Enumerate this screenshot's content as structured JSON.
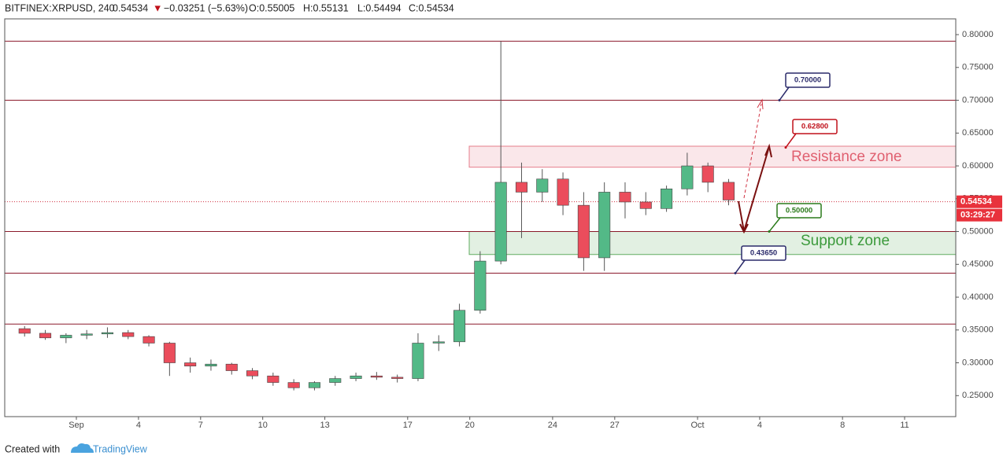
{
  "chart_data": {
    "type": "candlestick",
    "symbol": "BITFINEX:XRPUSD, 240",
    "last_price": 0.54534,
    "change_arrow": "▼",
    "change": "−0.03251 (−5.63%)",
    "ohlc": [
      "O:0.55005",
      "H:0.55131",
      "L:0.54494",
      "C:0.54534"
    ],
    "countdown": "03:29:27",
    "footer": "Created with",
    "brand": "TradingView",
    "xlim": [
      -2.46,
      43.47
    ],
    "xticks": [
      {
        "value": 1,
        "label": "Sep"
      },
      4,
      7,
      10,
      13,
      17,
      20,
      24,
      27,
      {
        "value": 31,
        "label": "Oct"
      },
      {
        "value": 34,
        "label": "4"
      },
      {
        "value": 38,
        "label": "8"
      },
      {
        "value": 41,
        "label": "11"
      }
    ],
    "ylim": [
      0.218,
      0.824
    ],
    "yticks": [
      {
        "value": 0.25,
        "label": "0.25000"
      },
      {
        "value": 0.3,
        "label": "0.30000"
      },
      {
        "value": 0.35,
        "label": "0.35000"
      },
      {
        "value": 0.4,
        "label": "0.40000"
      },
      {
        "value": 0.45,
        "label": "0.45000"
      },
      {
        "value": 0.5,
        "label": "0.50000"
      },
      {
        "value": 0.55,
        "label": "0.55000"
      },
      {
        "value": 0.6,
        "label": "0.60000"
      },
      {
        "value": 0.65,
        "label": "0.65000"
      },
      {
        "value": 0.7,
        "label": "0.70000"
      },
      {
        "value": 0.75,
        "label": "0.75000"
      },
      {
        "value": 0.8,
        "label": "0.80000"
      }
    ],
    "grid": true,
    "up_color": "#53b987",
    "down_color": "#eb4d5c",
    "level_color": "#8b1a2b",
    "candles": [
      {
        "x": -1.5,
        "open": 0.352,
        "high": 0.356,
        "low": 0.34,
        "close": 0.345
      },
      {
        "x": -0.5,
        "open": 0.345,
        "high": 0.35,
        "low": 0.335,
        "close": 0.338
      },
      {
        "x": 0.5,
        "open": 0.338,
        "high": 0.345,
        "low": 0.33,
        "close": 0.342
      },
      {
        "x": 1.5,
        "open": 0.342,
        "high": 0.35,
        "low": 0.336,
        "close": 0.344
      },
      {
        "x": 2.5,
        "open": 0.344,
        "high": 0.354,
        "low": 0.338,
        "close": 0.346
      },
      {
        "x": 3.5,
        "open": 0.346,
        "high": 0.35,
        "low": 0.336,
        "close": 0.34
      },
      {
        "x": 4.5,
        "open": 0.34,
        "high": 0.342,
        "low": 0.325,
        "close": 0.33
      },
      {
        "x": 5.5,
        "open": 0.33,
        "high": 0.332,
        "low": 0.28,
        "close": 0.3
      },
      {
        "x": 6.5,
        "open": 0.3,
        "high": 0.308,
        "low": 0.285,
        "close": 0.295
      },
      {
        "x": 7.5,
        "open": 0.295,
        "high": 0.305,
        "low": 0.288,
        "close": 0.298
      },
      {
        "x": 8.5,
        "open": 0.298,
        "high": 0.3,
        "low": 0.282,
        "close": 0.288
      },
      {
        "x": 9.5,
        "open": 0.288,
        "high": 0.292,
        "low": 0.275,
        "close": 0.28
      },
      {
        "x": 10.5,
        "open": 0.28,
        "high": 0.285,
        "low": 0.265,
        "close": 0.27
      },
      {
        "x": 11.5,
        "open": 0.27,
        "high": 0.275,
        "low": 0.258,
        "close": 0.262
      },
      {
        "x": 12.5,
        "open": 0.262,
        "high": 0.272,
        "low": 0.258,
        "close": 0.27
      },
      {
        "x": 13.5,
        "open": 0.27,
        "high": 0.28,
        "low": 0.265,
        "close": 0.276
      },
      {
        "x": 14.5,
        "open": 0.276,
        "high": 0.285,
        "low": 0.272,
        "close": 0.28
      },
      {
        "x": 15.5,
        "open": 0.28,
        "high": 0.286,
        "low": 0.274,
        "close": 0.278
      },
      {
        "x": 16.5,
        "open": 0.278,
        "high": 0.282,
        "low": 0.27,
        "close": 0.276
      },
      {
        "x": 17.5,
        "open": 0.276,
        "high": 0.345,
        "low": 0.272,
        "close": 0.33
      },
      {
        "x": 18.5,
        "open": 0.33,
        "high": 0.342,
        "low": 0.318,
        "close": 0.332
      },
      {
        "x": 19.5,
        "open": 0.332,
        "high": 0.39,
        "low": 0.325,
        "close": 0.38
      },
      {
        "x": 20.5,
        "open": 0.38,
        "high": 0.47,
        "low": 0.375,
        "close": 0.455
      },
      {
        "x": 21.5,
        "open": 0.455,
        "high": 0.79,
        "low": 0.45,
        "close": 0.575
      },
      {
        "x": 22.5,
        "open": 0.575,
        "high": 0.605,
        "low": 0.49,
        "close": 0.56
      },
      {
        "x": 23.5,
        "open": 0.56,
        "high": 0.595,
        "low": 0.545,
        "close": 0.58
      },
      {
        "x": 24.5,
        "open": 0.58,
        "high": 0.59,
        "low": 0.525,
        "close": 0.54
      },
      {
        "x": 25.5,
        "open": 0.54,
        "high": 0.56,
        "low": 0.44,
        "close": 0.46
      },
      {
        "x": 26.5,
        "open": 0.46,
        "high": 0.575,
        "low": 0.44,
        "close": 0.56
      },
      {
        "x": 27.5,
        "open": 0.56,
        "high": 0.575,
        "low": 0.52,
        "close": 0.545
      },
      {
        "x": 28.5,
        "open": 0.545,
        "high": 0.56,
        "low": 0.525,
        "close": 0.535
      },
      {
        "x": 29.5,
        "open": 0.535,
        "high": 0.57,
        "low": 0.53,
        "close": 0.565
      },
      {
        "x": 30.5,
        "open": 0.565,
        "high": 0.62,
        "low": 0.555,
        "close": 0.6
      },
      {
        "x": 31.5,
        "open": 0.6,
        "high": 0.605,
        "low": 0.56,
        "close": 0.575
      },
      {
        "x": 32.5,
        "open": 0.575,
        "high": 0.58,
        "low": 0.54,
        "close": 0.548
      }
    ],
    "levels": [
      0.79,
      0.7,
      0.5,
      0.4365,
      0.359
    ],
    "zones": [
      {
        "name": "Resistance zone",
        "range": [
          0.598,
          0.63
        ],
        "color": "#e06070"
      },
      {
        "name": "Support zone",
        "range": [
          0.465,
          0.5
        ],
        "color": "#3c9a3c"
      }
    ],
    "callouts": [
      {
        "label": "0.70000",
        "value": 0.7,
        "color": "#2a2a6a"
      },
      {
        "label": "0.62800",
        "value": 0.628,
        "color": "#c0101a"
      },
      {
        "label": "0.50000",
        "value": 0.5,
        "color": "#2a7a1a"
      },
      {
        "label": "0.43650",
        "value": 0.4365,
        "color": "#2a2a6a"
      }
    ]
  }
}
